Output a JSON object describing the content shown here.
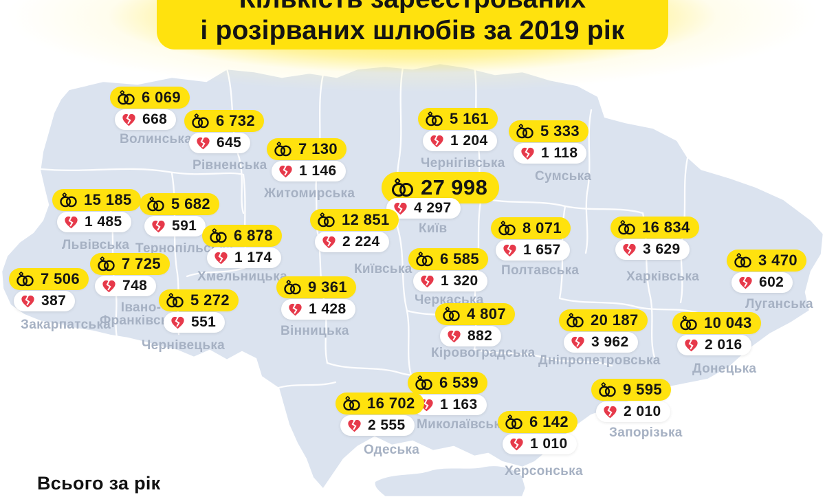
{
  "title": {
    "line1": "Кількість зареєстрованих",
    "line2": "і розірваних шлюбів за 2019 рік"
  },
  "footer": {
    "total_label": "Всього за рік"
  },
  "icons": {
    "marriage": "wedding-rings-icon",
    "divorce": "broken-heart-icon"
  },
  "colors": {
    "accent_yellow": "#FFE20E",
    "heart_red": "#E6394A",
    "map_fill": "#DBE3EF",
    "map_border": "#FFFFFF",
    "label_gray": "#A6B1C3",
    "text_black": "#141414"
  },
  "regions": [
    {
      "name": "Волинська",
      "marriages": "6 069",
      "divorces": "668"
    },
    {
      "name": "Рівненська",
      "marriages": "6 732",
      "divorces": "645"
    },
    {
      "name": "Житомирська",
      "marriages": "7 130",
      "divorces": "1 146"
    },
    {
      "name": "Чернігівська",
      "marriages": "5 161",
      "divorces": "1 204"
    },
    {
      "name": "Сумська",
      "marriages": "5 333",
      "divorces": "1 118"
    },
    {
      "name": "Львівська",
      "marriages": "15 185",
      "divorces": "1 485"
    },
    {
      "name": "Тернопільська",
      "marriages": "5 682",
      "divorces": "591"
    },
    {
      "name": "Київ",
      "marriages": "27 998",
      "divorces": "4 297"
    },
    {
      "name": "Київська",
      "marriages": "12 851",
      "divorces": "2 224"
    },
    {
      "name": "Хмельницька",
      "marriages": "6 878",
      "divorces": "1 174"
    },
    {
      "name": "Полтавська",
      "marriages": "8 071",
      "divorces": "1 657"
    },
    {
      "name": "Харківська",
      "marriages": "16 834",
      "divorces": "3 629"
    },
    {
      "name": "Луганська",
      "marriages": "3 470",
      "divorces": "602"
    },
    {
      "name": "Закарпатська",
      "marriages": "7 506",
      "divorces": "387"
    },
    {
      "name": "Івано-Франківська",
      "marriages": "7 725",
      "divorces": "748"
    },
    {
      "name": "Черкаська",
      "marriages": "6 585",
      "divorces": "1 320"
    },
    {
      "name": "Чернівецька",
      "marriages": "5 272",
      "divorces": "551"
    },
    {
      "name": "Вінницька",
      "marriages": "9 361",
      "divorces": "1 428"
    },
    {
      "name": "Кіровоградська",
      "marriages": "4 807",
      "divorces": "882"
    },
    {
      "name": "Дніпропетровська",
      "marriages": "20 187",
      "divorces": "3 962"
    },
    {
      "name": "Донецька",
      "marriages": "10 043",
      "divorces": "2 016"
    },
    {
      "name": "Миколаївська",
      "marriages": "6 539",
      "divorces": "1 163"
    },
    {
      "name": "Одеська",
      "marriages": "16 702",
      "divorces": "2 555"
    },
    {
      "name": "Херсонська",
      "marriages": "6 142",
      "divorces": "1 010"
    },
    {
      "name": "Запорізька",
      "marriages": "9 595",
      "divorces": "2 010"
    }
  ]
}
